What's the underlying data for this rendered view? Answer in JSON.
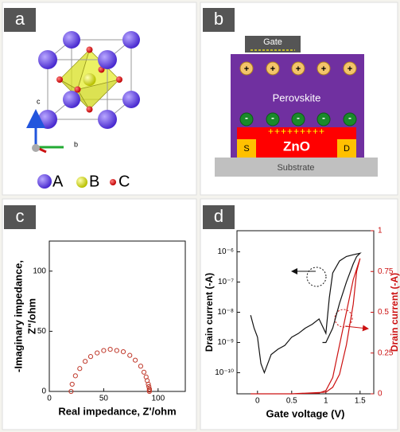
{
  "panels": [
    "a",
    "b",
    "c",
    "d"
  ],
  "crystal": {
    "axis_labels": [
      "c",
      "b"
    ],
    "legend": [
      "A",
      "B",
      "C"
    ]
  },
  "device": {
    "gate": "Gate",
    "perovskite": "Perovskite",
    "channel": "ZnO",
    "source": "S",
    "drain": "D",
    "substrate": "Substrate",
    "positive_charge": "+",
    "negative_charge": "-",
    "channel_charges": "+++++++++"
  },
  "chart_data": [
    {
      "type": "scatter",
      "xlabel": "Real impedance, Z'/ohm",
      "ylabel": [
        "-Imaginary impedance,",
        "Z\"/ohm"
      ],
      "x": [
        20,
        21,
        24,
        28,
        33,
        38,
        44,
        50,
        56,
        62,
        68,
        74,
        79,
        84,
        87,
        89,
        90,
        91,
        91.5,
        92,
        92,
        92
      ],
      "values": [
        0,
        6,
        13,
        19,
        25,
        29,
        32,
        34,
        35,
        34,
        33,
        30,
        26,
        21,
        16,
        12,
        9,
        6,
        4,
        2,
        1,
        0
      ],
      "color": "#c0392b",
      "xlim": [
        0,
        125
      ],
      "ylim": [
        0,
        125
      ],
      "xticks": [
        0,
        50,
        100
      ],
      "yticks": [
        0,
        50,
        100
      ]
    },
    {
      "type": "line",
      "xlabel": "Gate voltage (V)",
      "ylabel": "Drain current (-A)",
      "y2label": "Drain current (-A)",
      "log_y": true,
      "xlim": [
        -0.3,
        1.7
      ],
      "ylim": [
        2e-11,
        5e-06
      ],
      "y2lim": [
        0,
        1
      ],
      "xticks": [
        0,
        0.5,
        1,
        1.5
      ],
      "yticks": [
        {
          "value": 1e-06,
          "label": "10⁻⁶"
        },
        {
          "value": 1e-07,
          "label": "10⁻⁷"
        },
        {
          "value": 1e-08,
          "label": "10⁻⁸"
        },
        {
          "value": 1e-09,
          "label": "10⁻⁹"
        },
        {
          "value": 1e-10,
          "label": "10⁻¹⁰"
        }
      ],
      "y2ticks": [
        0,
        0.25,
        0.5,
        0.75,
        1
      ],
      "series": [
        {
          "color": "#111111",
          "x": [
            -0.1,
            -0.05,
            0,
            0.05,
            0.1,
            0.2,
            0.3,
            0.4,
            0.5,
            0.6,
            0.7,
            0.8,
            0.9,
            1.0,
            1.05,
            1.1,
            1.2,
            1.3,
            1.4,
            1.5,
            1.45,
            1.4,
            1.3,
            1.2,
            1.1,
            1.0,
            0.95
          ],
          "values": [
            8e-09,
            3e-09,
            1.5e-09,
            2e-10,
            1e-10,
            4e-10,
            6e-10,
            8e-10,
            1.5e-09,
            2e-09,
            3e-09,
            4e-09,
            6e-09,
            2e-09,
            3e-08,
            2e-07,
            5e-07,
            7e-07,
            8e-07,
            9e-07,
            7e-07,
            4e-07,
            1e-07,
            2e-08,
            3e-09,
            1e-09,
            1e-09
          ]
        },
        {
          "color": "#cc1111",
          "axis": "y2",
          "x": [
            -0.1,
            0.5,
            0.9,
            1.0,
            1.1,
            1.2,
            1.3,
            1.4,
            1.5,
            1.45,
            1.4,
            1.3,
            1.2,
            1.1,
            1.0,
            0.5
          ],
          "values": [
            0,
            0,
            0.005,
            0.02,
            0.1,
            0.3,
            0.5,
            0.7,
            0.83,
            0.75,
            0.55,
            0.3,
            0.12,
            0.04,
            0.01,
            0
          ]
        }
      ]
    }
  ]
}
